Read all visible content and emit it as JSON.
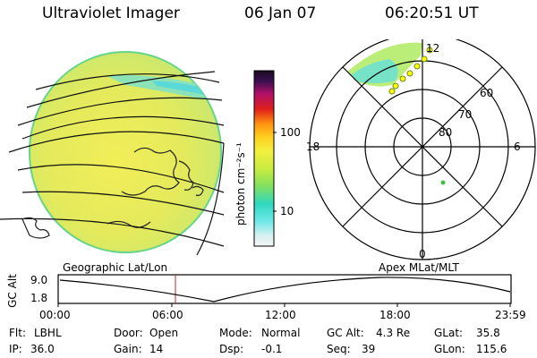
{
  "header": {
    "instrument": "Ultraviolet Imager",
    "date": "06 Jan 07",
    "time": "06:20:51 UT"
  },
  "colorbar": {
    "unit_label": "photon cm⁻²s⁻¹",
    "tick_100": "100",
    "tick_10": "10"
  },
  "polar": {
    "mlt_12": "12",
    "mlt_18": "18",
    "mlt_6": "6",
    "mlt_0": "0",
    "lat_60": "60",
    "lat_70": "70",
    "lat_80": "80"
  },
  "strip": {
    "left_title": "Geographic Lat/Lon",
    "right_title": "Apex MLat/MLT",
    "y_label": "GC Alt",
    "y_max": "9.0",
    "y_min": "1.8",
    "x_ticks": [
      "00:00",
      "06:00",
      "12:00",
      "18:00",
      "23:59"
    ]
  },
  "status": {
    "flt_label": "Flt:",
    "flt_value": "LBHL",
    "ip_label": "IP:",
    "ip_value": "36.0",
    "door_label": "Door:",
    "door_value": "Open",
    "gain_label": "Gain:",
    "gain_value": "14",
    "mode_label": "Mode:",
    "mode_value": "Normal",
    "dsp_label": "Dsp:",
    "dsp_value": "-0.1",
    "gcalt_label": "GC Alt:",
    "gcalt_value": "4.3 Re",
    "seq_label": "Seq:",
    "seq_value": "39",
    "glat_label": "GLat:",
    "glat_value": "35.8",
    "glon_label": "GLon:",
    "glon_value": "115.6"
  },
  "colors": {
    "disk_fill": "#e8ea5a",
    "disk_edge": "#66d48a",
    "aurora_cyan": "#6fe0d0",
    "aurora_green": "#b4ec6a",
    "marker": "#ffff00",
    "cursor": "#cc2222"
  }
}
